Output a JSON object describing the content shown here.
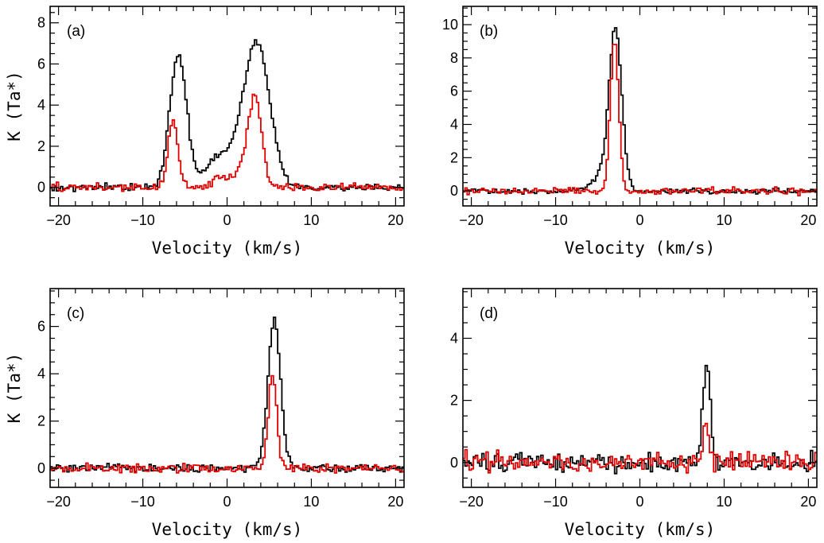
{
  "chart_data": [
    {
      "type": "line",
      "panel_label": "(a)",
      "xlabel": "Velocity (km/s)",
      "ylabel": "K (Ta*)",
      "xlim": [
        -21,
        21
      ],
      "ylim": [
        -0.9,
        8.8
      ],
      "xticks": [
        -20,
        -10,
        0,
        10,
        20
      ],
      "yticks": [
        0,
        2,
        4,
        6,
        8
      ],
      "series": [
        {
          "name": "black",
          "color": "#000000",
          "components": [
            {
              "amp": 6.4,
              "center": -5.8,
              "width": 1.0
            },
            {
              "amp": 6.2,
              "center": 3.6,
              "width": 1.5
            },
            {
              "amp": 1.5,
              "center": 1.0,
              "width": 2.6
            },
            {
              "amp": 0.5,
              "center": -1.5,
              "width": 0.8
            }
          ],
          "noise": 0.08
        },
        {
          "name": "red",
          "color": "#e00000",
          "components": [
            {
              "amp": 3.2,
              "center": -6.4,
              "width": 0.6
            },
            {
              "amp": 4.0,
              "center": 3.3,
              "width": 0.8
            },
            {
              "amp": 0.7,
              "center": 1.6,
              "width": 1.8
            },
            {
              "amp": 0.3,
              "center": -1.2,
              "width": 0.4
            }
          ],
          "noise": 0.1
        }
      ]
    },
    {
      "type": "line",
      "panel_label": "(b)",
      "xlabel": "Velocity (km/s)",
      "ylabel": "",
      "xlim": [
        -21,
        21
      ],
      "ylim": [
        -0.9,
        11.1
      ],
      "xticks": [
        -20,
        -10,
        0,
        10,
        20
      ],
      "yticks": [
        0,
        2,
        4,
        6,
        8,
        10
      ],
      "series": [
        {
          "name": "black",
          "color": "#000000",
          "components": [
            {
              "amp": 9.3,
              "center": -2.9,
              "width": 0.75
            },
            {
              "amp": 0.9,
              "center": -4.3,
              "width": 1.4
            }
          ],
          "noise": 0.08
        },
        {
          "name": "red",
          "color": "#e00000",
          "components": [
            {
              "amp": 9.0,
              "center": -3.0,
              "width": 0.5
            }
          ],
          "noise": 0.1
        }
      ]
    },
    {
      "type": "line",
      "panel_label": "(c)",
      "xlabel": "Velocity (km/s)",
      "ylabel": "K (Ta*)",
      "xlim": [
        -21,
        21
      ],
      "ylim": [
        -0.8,
        7.6
      ],
      "xticks": [
        -20,
        -10,
        0,
        10,
        20
      ],
      "yticks": [
        0,
        2,
        4,
        6
      ],
      "series": [
        {
          "name": "black",
          "color": "#000000",
          "components": [
            {
              "amp": 6.3,
              "center": 5.6,
              "width": 0.75
            }
          ],
          "noise": 0.08
        },
        {
          "name": "red",
          "color": "#e00000",
          "components": [
            {
              "amp": 4.0,
              "center": 5.4,
              "width": 0.5
            }
          ],
          "noise": 0.09
        }
      ]
    },
    {
      "type": "line",
      "panel_label": "(d)",
      "xlabel": "Velocity (km/s)",
      "ylabel": "",
      "xlim": [
        -21,
        21
      ],
      "ylim": [
        -0.8,
        5.6
      ],
      "xticks": [
        -20,
        -10,
        0,
        10,
        20
      ],
      "yticks": [
        0,
        2,
        4
      ],
      "series": [
        {
          "name": "black",
          "color": "#000000",
          "components": [
            {
              "amp": 3.2,
              "center": 7.9,
              "width": 0.45
            }
          ],
          "noise": 0.15
        },
        {
          "name": "red",
          "color": "#e00000",
          "components": [
            {
              "amp": 1.2,
              "center": 7.8,
              "width": 0.35
            }
          ],
          "noise": 0.16
        }
      ]
    }
  ]
}
